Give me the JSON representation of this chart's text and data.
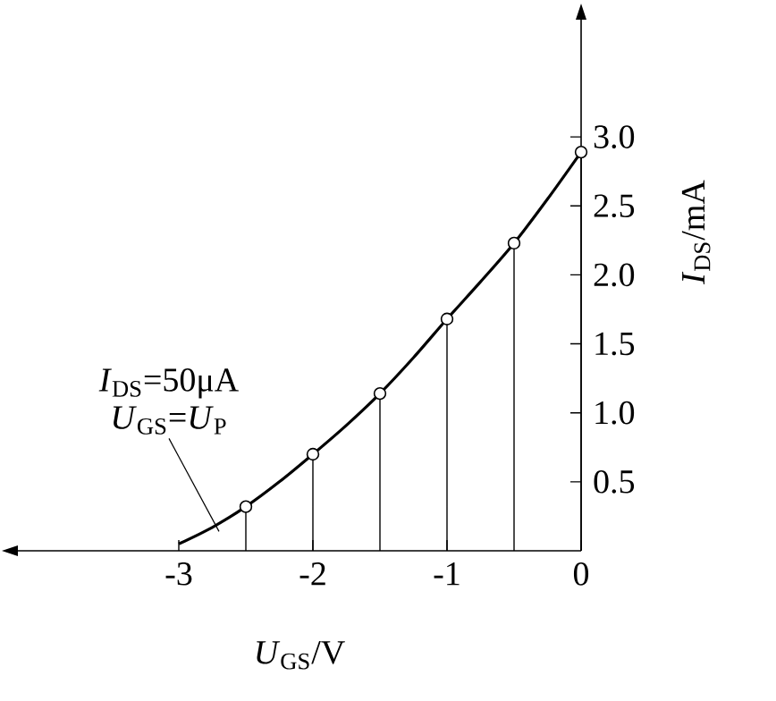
{
  "chart_data": {
    "type": "line",
    "xlabel": "*U*$_{GS}$/V",
    "ylabel": "*I*$_{DS}$/mA",
    "annotations": [
      "*I*$_{DS}$=50μA",
      {
        "text": "*U*$_{GS}$=*U*$_{P}$",
        "x": -2.7,
        "y": 0.14
      }
    ],
    "series": [
      {
        "color": "#000000",
        "marker": "none",
        "x": [
          -3,
          -2.75,
          -2.5,
          -2.25,
          -2,
          -1.75,
          -1.5,
          -1.25,
          -1,
          -0.75,
          -0.5,
          -0.25,
          0
        ],
        "values": [
          0.05,
          0.17,
          0.32,
          0.5,
          0.7,
          0.91,
          1.14,
          1.4,
          1.68,
          1.95,
          2.23,
          2.55,
          2.89
        ]
      },
      {
        "type": "lollipop",
        "color": "#000000",
        "marker": "circle",
        "x": [
          -2.5,
          -2,
          -1.5,
          -1,
          -0.5,
          0
        ],
        "values": [
          0.32,
          0.7,
          1.14,
          1.68,
          2.23,
          2.89
        ]
      }
    ],
    "xlim": [
      -4.2,
      0
    ],
    "ylim": [
      0,
      3.85
    ],
    "xticks": [
      -3,
      -2,
      -1,
      0
    ],
    "yticks": [
      0.5,
      {
        "value": 1,
        "label": "1.0"
      },
      1.5,
      {
        "value": 2,
        "label": "2.0"
      },
      2.5,
      {
        "value": 3,
        "label": "3.0"
      }
    ]
  }
}
